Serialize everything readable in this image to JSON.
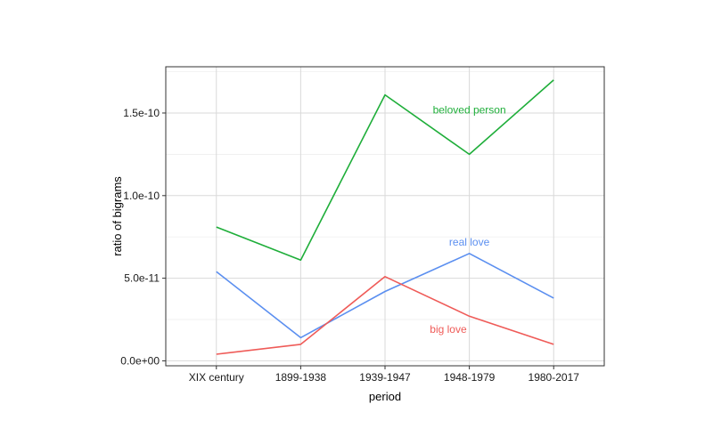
{
  "chart_data": {
    "type": "line",
    "xlabel": "period",
    "ylabel": "ratio of bigrams",
    "categories": [
      "XIX century",
      "1899-1938",
      "1939-1947",
      "1948-1979",
      "1980-2017"
    ],
    "ylim": [
      -3e-12,
      1.78e-10
    ],
    "yticks": [
      0,
      5e-11,
      1e-10,
      1.5e-10
    ],
    "ytick_labels": [
      "0.0e+00",
      "5.0e-11",
      "1.0e-10",
      "1.5e-10"
    ],
    "grid": true,
    "legend": "none",
    "series": [
      {
        "name": "beloved person",
        "color": "#1fae3a",
        "values": [
          8.1e-11,
          6.1e-11,
          1.61e-10,
          1.25e-10,
          1.7e-10
        ],
        "label_at": {
          "x": 3.0,
          "y": 1.52e-10
        }
      },
      {
        "name": "real love",
        "color": "#5b8ff0",
        "values": [
          5.4e-11,
          1.4e-11,
          4.2e-11,
          6.5e-11,
          3.8e-11
        ],
        "label_at": {
          "x": 3.0,
          "y": 7.2e-11
        }
      },
      {
        "name": "big love",
        "color": "#ef5b58",
        "values": [
          4e-12,
          1e-11,
          5.1e-11,
          2.7e-11,
          1e-11
        ],
        "label_at": {
          "x": 2.75,
          "y": 1.9e-11
        }
      }
    ]
  }
}
